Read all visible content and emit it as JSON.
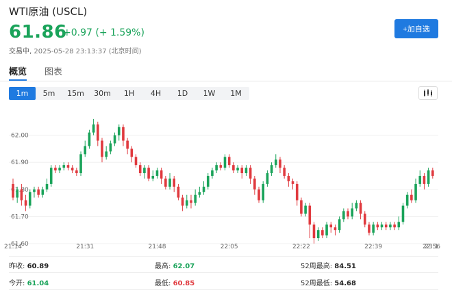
{
  "header": {
    "title": "WTI原油 (USCL)",
    "price": "61.86",
    "change": "+0.97 (+ 1.59%)",
    "status_label": "交易中,",
    "timestamp": "2025-05-28 23:13:37 (北京时间)",
    "add_watchlist_label": "+加自选"
  },
  "tabs": [
    {
      "label": "概览",
      "active": true
    },
    {
      "label": "图表",
      "active": false
    }
  ],
  "periods": [
    {
      "label": "1m",
      "active": true
    },
    {
      "label": "5m",
      "active": false
    },
    {
      "label": "15m",
      "active": false
    },
    {
      "label": "30m",
      "active": false
    },
    {
      "label": "1H",
      "active": false
    },
    {
      "label": "4H",
      "active": false
    },
    {
      "label": "1D",
      "active": false
    },
    {
      "label": "1W",
      "active": false
    },
    {
      "label": "1M",
      "active": false
    }
  ],
  "chart_type_icon": "candlestick-icon",
  "colors": {
    "up": "#1aa35a",
    "down": "#e0393e",
    "accent": "#1f7ae0"
  },
  "chart_data": {
    "type": "candlestick",
    "ylim": [
      61.6,
      62.09
    ],
    "y_ticks": [
      "62.00",
      "61.90",
      "61.80",
      "61.70",
      "61.60"
    ],
    "y_tick_values": [
      62.0,
      61.9,
      61.8,
      61.7,
      61.6
    ],
    "x_ticks": [
      "21:14",
      "21:31",
      "21:48",
      "22:05",
      "22:22",
      "22:39",
      "22:56",
      "23:1"
    ],
    "x_tick_index": [
      0,
      17,
      34,
      51,
      68,
      85,
      102,
      119
    ],
    "candles": [
      [
        61.82,
        61.77,
        61.84,
        61.76
      ],
      [
        61.77,
        61.8,
        61.81,
        61.75
      ],
      [
        61.8,
        61.76,
        61.82,
        61.74
      ],
      [
        61.76,
        61.74,
        61.78,
        61.72
      ],
      [
        61.74,
        61.79,
        61.8,
        61.73
      ],
      [
        61.79,
        61.8,
        61.81,
        61.77
      ],
      [
        61.8,
        61.78,
        61.81,
        61.77
      ],
      [
        61.78,
        61.8,
        61.81,
        61.77
      ],
      [
        61.8,
        61.82,
        61.84,
        61.79
      ],
      [
        61.82,
        61.88,
        61.89,
        61.81
      ],
      [
        61.88,
        61.87,
        61.89,
        61.86
      ],
      [
        61.87,
        61.88,
        61.89,
        61.86
      ],
      [
        61.88,
        61.89,
        61.9,
        61.87
      ],
      [
        61.89,
        61.88,
        61.9,
        61.87
      ],
      [
        61.88,
        61.87,
        61.89,
        61.86
      ],
      [
        61.87,
        61.86,
        61.88,
        61.85
      ],
      [
        61.86,
        61.93,
        61.94,
        61.85
      ],
      [
        61.93,
        61.96,
        61.98,
        61.92
      ],
      [
        61.96,
        62.01,
        62.02,
        61.95
      ],
      [
        62.01,
        62.04,
        62.06,
        62.0
      ],
      [
        62.04,
        61.98,
        62.05,
        61.96
      ],
      [
        61.98,
        61.92,
        61.99,
        61.9
      ],
      [
        61.92,
        61.94,
        61.96,
        61.91
      ],
      [
        61.94,
        61.97,
        61.98,
        61.93
      ],
      [
        61.97,
        62.0,
        62.01,
        61.96
      ],
      [
        62.0,
        62.03,
        62.04,
        61.98
      ],
      [
        62.03,
        61.98,
        62.04,
        61.96
      ],
      [
        61.98,
        61.95,
        61.99,
        61.93
      ],
      [
        61.95,
        61.92,
        61.96,
        61.9
      ],
      [
        61.92,
        61.89,
        61.93,
        61.88
      ],
      [
        61.89,
        61.86,
        61.9,
        61.85
      ],
      [
        61.86,
        61.88,
        61.89,
        61.84
      ],
      [
        61.88,
        61.84,
        61.89,
        61.83
      ],
      [
        61.84,
        61.85,
        61.87,
        61.83
      ],
      [
        61.85,
        61.87,
        61.88,
        61.84
      ],
      [
        61.87,
        61.84,
        61.88,
        61.82
      ],
      [
        61.84,
        61.81,
        61.85,
        61.8
      ],
      [
        61.81,
        61.84,
        61.86,
        61.8
      ],
      [
        61.84,
        61.81,
        61.85,
        61.79
      ],
      [
        61.81,
        61.77,
        61.82,
        61.76
      ],
      [
        61.77,
        61.74,
        61.78,
        61.72
      ],
      [
        61.74,
        61.76,
        61.78,
        61.73
      ],
      [
        61.76,
        61.75,
        61.78,
        61.73
      ],
      [
        61.75,
        61.78,
        61.8,
        61.74
      ],
      [
        61.78,
        61.79,
        61.81,
        61.77
      ],
      [
        61.79,
        61.81,
        61.83,
        61.78
      ],
      [
        61.81,
        61.85,
        61.86,
        61.8
      ],
      [
        61.85,
        61.87,
        61.88,
        61.84
      ],
      [
        61.87,
        61.89,
        61.9,
        61.86
      ],
      [
        61.89,
        61.88,
        61.9,
        61.87
      ],
      [
        61.88,
        61.92,
        61.93,
        61.87
      ],
      [
        61.92,
        61.89,
        61.93,
        61.88
      ],
      [
        61.89,
        61.87,
        61.9,
        61.86
      ],
      [
        61.87,
        61.88,
        61.89,
        61.86
      ],
      [
        61.88,
        61.86,
        61.89,
        61.84
      ],
      [
        61.86,
        61.88,
        61.89,
        61.85
      ],
      [
        61.88,
        61.84,
        61.89,
        61.82
      ],
      [
        61.84,
        61.8,
        61.85,
        61.78
      ],
      [
        61.8,
        61.76,
        61.81,
        61.75
      ],
      [
        61.76,
        61.82,
        61.83,
        61.75
      ],
      [
        61.82,
        61.86,
        61.87,
        61.81
      ],
      [
        61.86,
        61.89,
        61.9,
        61.85
      ],
      [
        61.89,
        61.91,
        61.93,
        61.88
      ],
      [
        61.91,
        61.88,
        61.92,
        61.86
      ],
      [
        61.88,
        61.85,
        61.89,
        61.84
      ],
      [
        61.85,
        61.83,
        61.86,
        61.81
      ],
      [
        61.83,
        61.82,
        61.84,
        61.8
      ],
      [
        61.82,
        61.76,
        61.83,
        61.74
      ],
      [
        61.76,
        61.71,
        61.77,
        61.7
      ],
      [
        61.71,
        61.74,
        61.75,
        61.7
      ],
      [
        61.74,
        61.67,
        61.75,
        61.62
      ],
      [
        61.67,
        61.62,
        61.68,
        61.6
      ],
      [
        61.62,
        61.65,
        61.66,
        61.61
      ],
      [
        61.65,
        61.63,
        61.66,
        61.62
      ],
      [
        61.63,
        61.67,
        61.68,
        61.62
      ],
      [
        61.67,
        61.66,
        61.68,
        61.64
      ],
      [
        61.66,
        61.65,
        61.67,
        61.63
      ],
      [
        61.65,
        61.69,
        61.7,
        61.64
      ],
      [
        61.69,
        61.72,
        61.73,
        61.68
      ],
      [
        61.72,
        61.7,
        61.73,
        61.69
      ],
      [
        61.7,
        61.73,
        61.75,
        61.69
      ],
      [
        61.73,
        61.75,
        61.76,
        61.72
      ],
      [
        61.75,
        61.71,
        61.76,
        61.69
      ],
      [
        61.71,
        61.67,
        61.72,
        61.66
      ],
      [
        61.67,
        61.64,
        61.68,
        61.63
      ],
      [
        61.64,
        61.67,
        61.68,
        61.63
      ],
      [
        61.67,
        61.66,
        61.68,
        61.65
      ],
      [
        61.66,
        61.67,
        61.68,
        61.65
      ],
      [
        61.67,
        61.66,
        61.68,
        61.65
      ],
      [
        61.66,
        61.67,
        61.68,
        61.65
      ],
      [
        61.67,
        61.66,
        61.68,
        61.65
      ],
      [
        61.66,
        61.68,
        61.7,
        61.65
      ],
      [
        61.68,
        61.74,
        61.75,
        61.67
      ],
      [
        61.74,
        61.78,
        61.79,
        61.73
      ],
      [
        61.78,
        61.76,
        61.8,
        61.75
      ],
      [
        61.76,
        61.82,
        61.84,
        61.75
      ],
      [
        61.82,
        61.85,
        61.87,
        61.81
      ],
      [
        61.85,
        61.82,
        61.86,
        61.8
      ],
      [
        61.82,
        61.87,
        61.88,
        61.81
      ],
      [
        61.87,
        61.85,
        61.88,
        61.84
      ]
    ]
  },
  "stats": [
    {
      "label": "昨收:",
      "value": "60.89",
      "tone": "neutral"
    },
    {
      "label": "最高:",
      "value": "62.07",
      "tone": "up"
    },
    {
      "label": "52周最高:",
      "value": "84.51",
      "tone": "neutral"
    },
    {
      "label": "今开:",
      "value": "61.04",
      "tone": "up"
    },
    {
      "label": "最低:",
      "value": "60.85",
      "tone": "down"
    },
    {
      "label": "52周最低:",
      "value": "54.68",
      "tone": "neutral"
    }
  ]
}
